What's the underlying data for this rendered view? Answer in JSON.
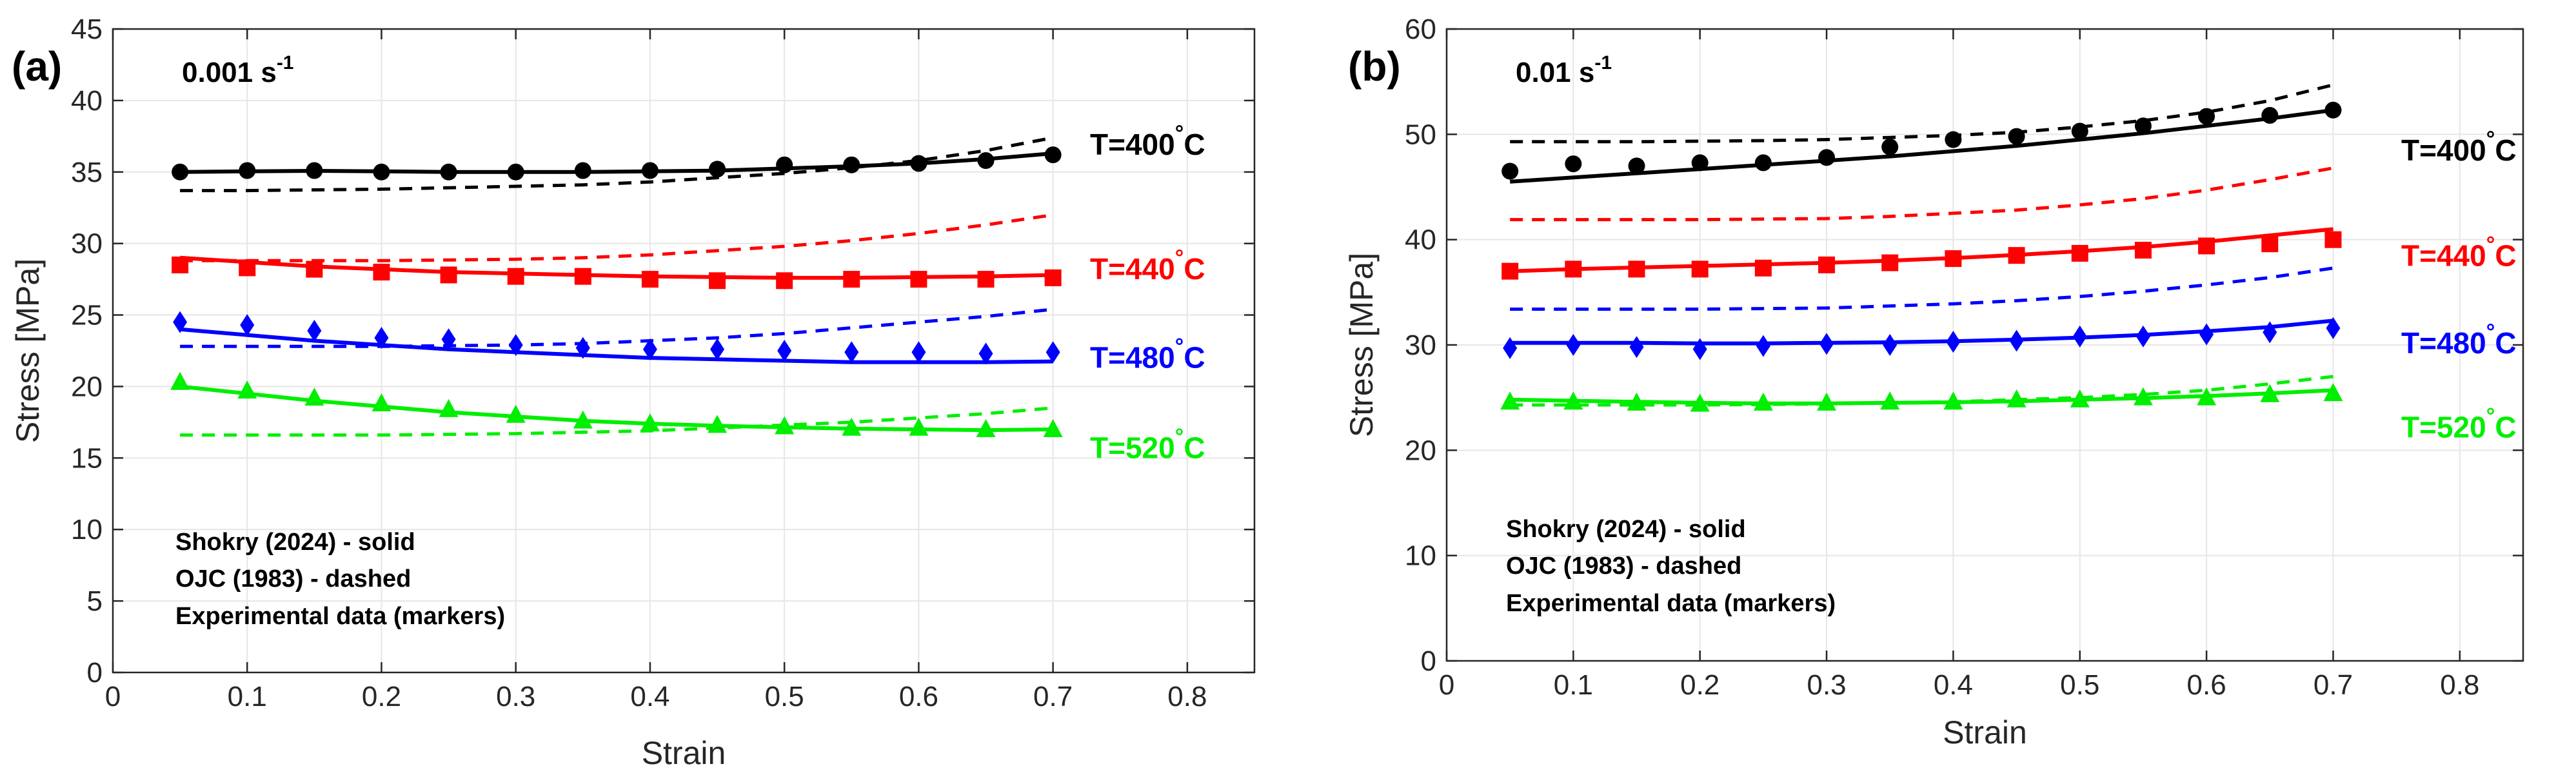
{
  "figure": {
    "caption_note": ""
  },
  "colors": {
    "T400": "#000000",
    "T440": "#ff0000",
    "T480": "#0000ff",
    "T520": "#00ee00",
    "grid": "#e6e6e6",
    "axis": "#262626"
  },
  "chart_data": [
    {
      "type": "line",
      "panel_label": "(a)",
      "title": "",
      "rate_label": "0.001 s",
      "rate_exponent": "-1",
      "xlabel": "Strain",
      "ylabel": "Stress [MPa]",
      "xlim": [
        0,
        0.85
      ],
      "ylim": [
        0,
        45
      ],
      "xticks": [
        0,
        0.1,
        0.2,
        0.3,
        0.4,
        0.5,
        0.6,
        0.7,
        0.8
      ],
      "xtick_labels": [
        "0",
        "0.1",
        "0.2",
        "0.3",
        "0.4",
        "0.5",
        "0.6",
        "0.7",
        "0.8"
      ],
      "yticks": [
        0,
        5,
        10,
        15,
        20,
        25,
        30,
        35,
        40,
        45
      ],
      "ytick_labels": [
        "0",
        "5",
        "10",
        "15",
        "20",
        "25",
        "30",
        "35",
        "40",
        "45"
      ],
      "grid": true,
      "legend_notes": [
        "Shokry (2024) - solid",
        "OJC (1983) - dashed",
        "Experimental data (markers)"
      ],
      "series": [
        {
          "name": "T=400",
          "label_main": "T=400",
          "label_unit": "C",
          "label_degree": "°",
          "label_y": 36.2,
          "color_key": "T400",
          "marker": "circle",
          "x": [
            0.05,
            0.1,
            0.15,
            0.2,
            0.25,
            0.3,
            0.35,
            0.4,
            0.45,
            0.5,
            0.55,
            0.6,
            0.65,
            0.7
          ],
          "experimental": [
            35.0,
            35.1,
            35.1,
            35.0,
            35.0,
            35.0,
            35.1,
            35.1,
            35.2,
            35.5,
            35.5,
            35.6,
            35.8,
            36.2
          ],
          "shokry": [
            35.0,
            35.05,
            35.08,
            35.05,
            35.0,
            35.0,
            35.0,
            35.05,
            35.1,
            35.25,
            35.4,
            35.6,
            35.9,
            36.3
          ],
          "ojc": [
            33.7,
            33.7,
            33.75,
            33.8,
            33.9,
            34.0,
            34.1,
            34.3,
            34.6,
            34.9,
            35.3,
            35.8,
            36.5,
            37.4
          ]
        },
        {
          "name": "T=440",
          "label_main": "T=440",
          "label_unit": "C",
          "label_degree": "°",
          "label_y": 27.5,
          "color_key": "T440",
          "marker": "square",
          "x": [
            0.05,
            0.1,
            0.15,
            0.2,
            0.25,
            0.3,
            0.35,
            0.4,
            0.45,
            0.5,
            0.55,
            0.6,
            0.65,
            0.7
          ],
          "experimental": [
            28.5,
            28.3,
            28.2,
            28.0,
            27.8,
            27.7,
            27.7,
            27.5,
            27.4,
            27.4,
            27.5,
            27.5,
            27.5,
            27.6
          ],
          "shokry": [
            29.0,
            28.7,
            28.4,
            28.2,
            28.0,
            27.9,
            27.8,
            27.7,
            27.65,
            27.6,
            27.6,
            27.65,
            27.7,
            27.8
          ],
          "ojc": [
            28.8,
            28.8,
            28.8,
            28.8,
            28.85,
            28.9,
            29.0,
            29.2,
            29.5,
            29.8,
            30.2,
            30.7,
            31.3,
            32.0
          ]
        },
        {
          "name": "T=480",
          "label_main": "T=480",
          "label_unit": "C",
          "label_degree": "°",
          "label_y": 21.3,
          "color_key": "T480",
          "marker": "diamond",
          "x": [
            0.05,
            0.1,
            0.15,
            0.2,
            0.25,
            0.3,
            0.35,
            0.4,
            0.45,
            0.5,
            0.55,
            0.6,
            0.65,
            0.7
          ],
          "experimental": [
            24.5,
            24.3,
            23.9,
            23.4,
            23.3,
            22.9,
            22.7,
            22.6,
            22.6,
            22.5,
            22.4,
            22.4,
            22.3,
            22.4
          ],
          "shokry": [
            24.0,
            23.6,
            23.2,
            22.9,
            22.6,
            22.4,
            22.2,
            22.0,
            21.9,
            21.8,
            21.7,
            21.7,
            21.7,
            21.75
          ],
          "ojc": [
            22.8,
            22.8,
            22.8,
            22.8,
            22.85,
            22.9,
            23.0,
            23.2,
            23.4,
            23.7,
            24.1,
            24.5,
            24.9,
            25.4
          ]
        },
        {
          "name": "T=520",
          "label_main": "T=520",
          "label_unit": "C",
          "label_degree": "°",
          "label_y": 15.0,
          "color_key": "T520",
          "marker": "triangle",
          "x": [
            0.05,
            0.1,
            0.15,
            0.2,
            0.25,
            0.3,
            0.35,
            0.4,
            0.45,
            0.5,
            0.55,
            0.6,
            0.65,
            0.7
          ],
          "experimental": [
            20.3,
            19.7,
            19.2,
            18.8,
            18.4,
            18.0,
            17.6,
            17.4,
            17.3,
            17.2,
            17.1,
            17.1,
            17.0,
            17.0
          ],
          "shokry": [
            20.0,
            19.5,
            19.0,
            18.6,
            18.2,
            17.9,
            17.6,
            17.4,
            17.25,
            17.15,
            17.05,
            17.0,
            16.95,
            17.0
          ],
          "ojc": [
            16.6,
            16.6,
            16.6,
            16.6,
            16.65,
            16.7,
            16.8,
            16.9,
            17.1,
            17.3,
            17.5,
            17.8,
            18.1,
            18.5
          ]
        }
      ]
    },
    {
      "type": "line",
      "panel_label": "(b)",
      "title": "",
      "rate_label": "0.01 s",
      "rate_exponent": "-1",
      "xlabel": "Strain",
      "ylabel": "Stress [MPa]",
      "xlim": [
        0,
        0.85
      ],
      "ylim": [
        0,
        60
      ],
      "xticks": [
        0,
        0.1,
        0.2,
        0.3,
        0.4,
        0.5,
        0.6,
        0.7,
        0.8
      ],
      "xtick_labels": [
        "0",
        "0.1",
        "0.2",
        "0.3",
        "0.4",
        "0.5",
        "0.6",
        "0.7",
        "0.8"
      ],
      "yticks": [
        0,
        10,
        20,
        30,
        40,
        50,
        60
      ],
      "ytick_labels": [
        "0",
        "10",
        "20",
        "30",
        "40",
        "50",
        "60"
      ],
      "grid": true,
      "legend_notes": [
        "Shokry (2024) - solid",
        "OJC (1983) - dashed",
        "Experimental data (markers)"
      ],
      "series": [
        {
          "name": "T=400",
          "label_main": "T=400",
          "label_unit": "C",
          "label_degree": "°",
          "label_y": 47.5,
          "color_key": "T400",
          "marker": "circle",
          "x": [
            0.05,
            0.1,
            0.15,
            0.2,
            0.25,
            0.3,
            0.35,
            0.4,
            0.45,
            0.5,
            0.55,
            0.6,
            0.65,
            0.7
          ],
          "experimental": [
            46.5,
            47.2,
            47.0,
            47.3,
            47.3,
            47.8,
            48.8,
            49.5,
            49.8,
            50.3,
            50.8,
            51.7,
            51.8,
            52.3
          ],
          "shokry": [
            45.5,
            45.9,
            46.3,
            46.7,
            47.1,
            47.5,
            47.9,
            48.4,
            48.9,
            49.5,
            50.1,
            50.8,
            51.5,
            52.3
          ],
          "ojc": [
            49.3,
            49.3,
            49.3,
            49.35,
            49.4,
            49.5,
            49.7,
            49.9,
            50.2,
            50.7,
            51.3,
            52.1,
            53.2,
            54.7
          ]
        },
        {
          "name": "T=440",
          "label_main": "T=440",
          "label_unit": "C",
          "label_degree": "°",
          "label_y": 37.5,
          "color_key": "T440",
          "marker": "square",
          "x": [
            0.05,
            0.1,
            0.15,
            0.2,
            0.25,
            0.3,
            0.35,
            0.4,
            0.45,
            0.5,
            0.55,
            0.6,
            0.65,
            0.7
          ],
          "experimental": [
            37.0,
            37.2,
            37.2,
            37.2,
            37.3,
            37.6,
            37.8,
            38.2,
            38.5,
            38.7,
            39.0,
            39.4,
            39.6,
            40.0
          ],
          "shokry": [
            37.0,
            37.2,
            37.35,
            37.5,
            37.65,
            37.8,
            38.0,
            38.25,
            38.55,
            38.9,
            39.3,
            39.8,
            40.4,
            41.0
          ],
          "ojc": [
            41.9,
            41.9,
            41.9,
            41.9,
            41.95,
            42.0,
            42.2,
            42.5,
            42.8,
            43.3,
            43.9,
            44.7,
            45.7,
            46.8
          ]
        },
        {
          "name": "T=480",
          "label_main": "T=480",
          "label_unit": "C",
          "label_degree": "°",
          "label_y": 29.2,
          "color_key": "T480",
          "marker": "diamond",
          "x": [
            0.05,
            0.1,
            0.15,
            0.2,
            0.25,
            0.3,
            0.35,
            0.4,
            0.45,
            0.5,
            0.55,
            0.6,
            0.65,
            0.7
          ],
          "experimental": [
            29.7,
            30.0,
            29.8,
            29.6,
            29.9,
            30.1,
            30.0,
            30.3,
            30.4,
            30.8,
            30.8,
            31.0,
            31.2,
            31.6
          ],
          "shokry": [
            30.2,
            30.2,
            30.2,
            30.15,
            30.15,
            30.2,
            30.25,
            30.35,
            30.5,
            30.7,
            30.95,
            31.3,
            31.7,
            32.3
          ],
          "ojc": [
            33.4,
            33.4,
            33.4,
            33.4,
            33.45,
            33.5,
            33.7,
            33.9,
            34.2,
            34.6,
            35.1,
            35.7,
            36.4,
            37.3
          ]
        },
        {
          "name": "T=520",
          "label_main": "T=520",
          "label_unit": "C",
          "label_degree": "°",
          "label_y": 21.2,
          "color_key": "T520",
          "marker": "triangle",
          "x": [
            0.05,
            0.1,
            0.15,
            0.2,
            0.25,
            0.3,
            0.35,
            0.4,
            0.45,
            0.5,
            0.55,
            0.6,
            0.65,
            0.7
          ],
          "experimental": [
            24.6,
            24.6,
            24.5,
            24.4,
            24.5,
            24.5,
            24.6,
            24.6,
            24.8,
            24.8,
            25.0,
            25.0,
            25.3,
            25.4
          ],
          "shokry": [
            24.8,
            24.7,
            24.6,
            24.5,
            24.45,
            24.45,
            24.5,
            24.55,
            24.65,
            24.8,
            24.95,
            25.15,
            25.4,
            25.7
          ],
          "ojc": [
            24.3,
            24.3,
            24.3,
            24.3,
            24.35,
            24.4,
            24.5,
            24.6,
            24.8,
            25.0,
            25.3,
            25.7,
            26.3,
            27.0
          ]
        }
      ]
    }
  ]
}
